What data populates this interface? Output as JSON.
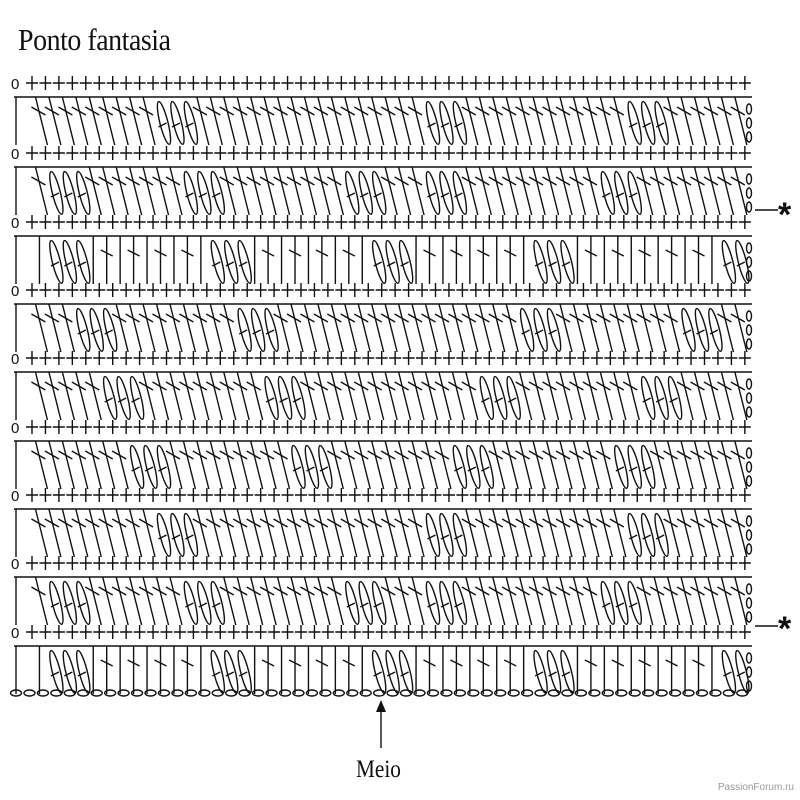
{
  "title": "Ponto fantasia",
  "row_start_label": "0",
  "marker": "*",
  "middle_label": "Meio",
  "watermark": "PassionForum.ru",
  "chart": {
    "stitch_columns": 54,
    "single_crochet_rows": 9,
    "double_crochet_rows": 9,
    "marked_rows": [
      2,
      8
    ],
    "symbols": [
      "chain-oval",
      "single-crochet-plus",
      "double-crochet-T",
      "cluster-shell"
    ]
  }
}
